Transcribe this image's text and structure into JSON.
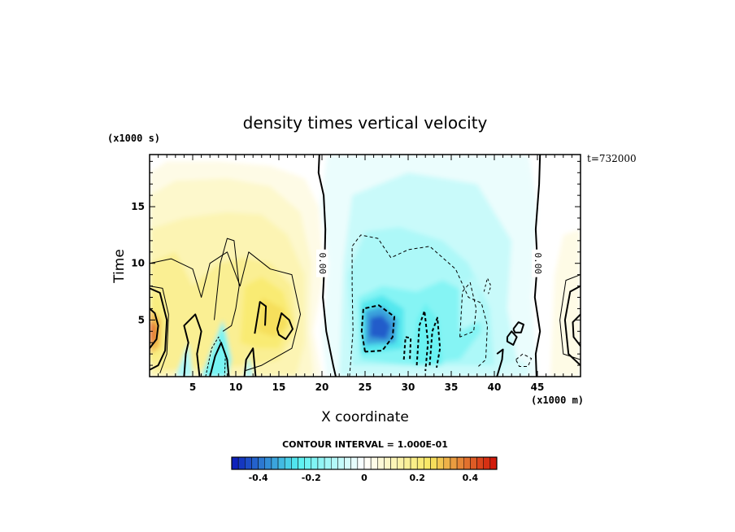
{
  "chart_data": {
    "type": "heatmap",
    "title": "density times vertical velocity",
    "xlabel": "X coordinate",
    "ylabel": "Time",
    "x_units": "(x1000 m)",
    "y_units": "(x1000 s)",
    "time_stamp": "t=732000",
    "xlim": [
      0,
      50
    ],
    "ylim": [
      0,
      19.6
    ],
    "x_ticks": [
      5,
      10,
      15,
      20,
      25,
      30,
      35,
      40,
      45
    ],
    "y_ticks": [
      5,
      10,
      15
    ],
    "contour_interval_text": "CONTOUR INTERVAL = 1.000E-01",
    "contour_interval": 0.1,
    "zero_contour_label": "0.00",
    "zero_contour_positions": [
      [
        20,
        10
      ],
      [
        45,
        10
      ]
    ],
    "colorbar": {
      "range": [
        -0.5,
        0.5
      ],
      "ticks": [
        -0.4,
        -0.2,
        0,
        0.2,
        0.4
      ],
      "tick_labels": [
        "-0.4",
        "-0.2",
        "0",
        "0.2",
        "0.4"
      ],
      "colors": [
        "#0a16b8",
        "#55f0f0",
        "#ffffff",
        "#f8e860",
        "#d00f05"
      ]
    },
    "features": [
      {
        "x": 0.5,
        "y": 4,
        "value": 0.35
      },
      {
        "x": 49.8,
        "y": 4,
        "value": 0.35
      },
      {
        "x": 14,
        "y": 6,
        "value": 0.22
      },
      {
        "x": 10,
        "y": 10,
        "value": 0.12
      },
      {
        "x": 27,
        "y": 4.5,
        "value": -0.42
      },
      {
        "x": 32,
        "y": 3,
        "value": -0.22
      },
      {
        "x": 35,
        "y": 6,
        "value": -0.15
      },
      {
        "x": 31,
        "y": 13,
        "value": -0.08
      },
      {
        "x": 8,
        "y": 1.5,
        "value": -0.25
      }
    ]
  }
}
